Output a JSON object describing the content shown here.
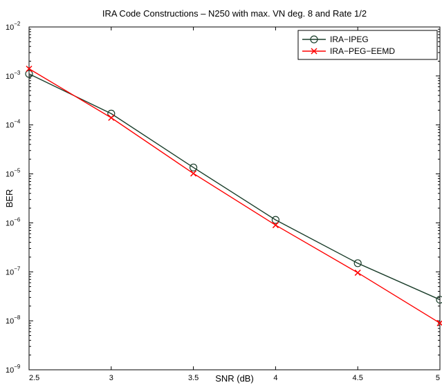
{
  "chart_data": {
    "type": "line",
    "title": "IRA Code Constructions – N250 with max. VN deg. 8 and Rate 1/2",
    "xlabel": "SNR (dB)",
    "ylabel": "BER",
    "xlim": [
      2.5,
      5
    ],
    "ylim": [
      1e-09,
      0.01
    ],
    "yscale": "log",
    "grid": false,
    "legend_position": "top-right",
    "x_ticks": [
      "2.5",
      "3",
      "3.5",
      "4",
      "4.5",
      "5"
    ],
    "y_ticks": [
      {
        "base": "10",
        "exp": "−9"
      },
      {
        "base": "10",
        "exp": "−8"
      },
      {
        "base": "10",
        "exp": "−7"
      },
      {
        "base": "10",
        "exp": "−6"
      },
      {
        "base": "10",
        "exp": "−5"
      },
      {
        "base": "10",
        "exp": "−4"
      },
      {
        "base": "10",
        "exp": "−3"
      },
      {
        "base": "10",
        "exp": "−2"
      }
    ],
    "x": [
      2.5,
      3,
      3.5,
      4,
      4.5,
      5
    ],
    "series": [
      {
        "name": "IRA−IPEG",
        "color": "#1a3d2a",
        "marker": "circle",
        "values": [
          0.0011,
          0.00017,
          1.35e-05,
          1.15e-06,
          1.5e-07,
          2.7e-08
        ]
      },
      {
        "name": "IRA−PEG−EEMD",
        "color": "#ff0000",
        "marker": "x",
        "values": [
          0.0014,
          0.00014,
          1.02e-05,
          9e-07,
          9.6e-08,
          9e-09
        ]
      }
    ]
  }
}
